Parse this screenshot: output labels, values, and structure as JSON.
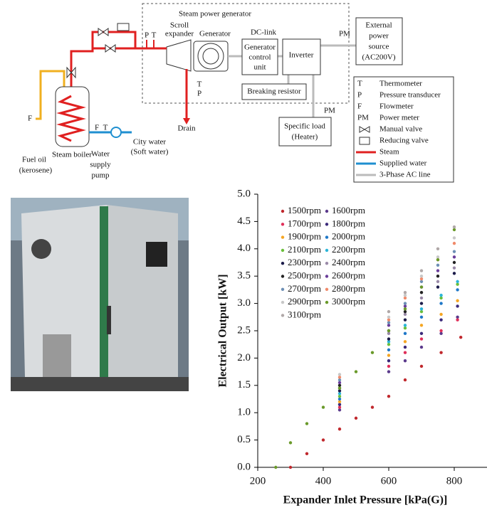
{
  "diagram": {
    "title": "Steam power generator",
    "expander": [
      "Scroll",
      "expander"
    ],
    "generator": "Generator",
    "dc_link": "DC-link",
    "gcu": [
      "Generator",
      "control",
      "unit"
    ],
    "inverter": "Inverter",
    "pm_top": "PM",
    "external": [
      "External",
      "power",
      "source",
      "(AC200V)"
    ],
    "resistor": "Breaking resistor",
    "sensors_top": [
      "P",
      "T"
    ],
    "sensors_bottom": [
      "T",
      "P"
    ],
    "drain": "Drain",
    "pm_bottom": "PM",
    "load": [
      "Specific load",
      "(Heater)"
    ],
    "fuel_f": "F",
    "fuel": [
      "Fuel oil",
      "(kerosene)"
    ],
    "boiler": "Steam boiler",
    "water_sensors": [
      "F",
      "T"
    ],
    "pump": [
      "Water",
      "supply",
      "pump"
    ],
    "city": [
      "City water",
      "(Soft water)"
    ],
    "legend": [
      {
        "symbol": "T",
        "label": "Thermometer"
      },
      {
        "symbol": "P",
        "label": "Pressure transducer"
      },
      {
        "symbol": "F",
        "label": "Flowmeter"
      },
      {
        "symbol": "PM",
        "label": "Power meter"
      },
      {
        "label": "Manual valve"
      },
      {
        "label": "Reducing valve"
      },
      {
        "label": "Steam"
      },
      {
        "label": "Supplied water"
      },
      {
        "label": "3-Phase AC line"
      }
    ]
  },
  "chart_data": {
    "type": "scatter",
    "xlabel": "Expander Inlet Pressure [kPa(G)]",
    "ylabel": "Electrical Output [kW]",
    "xlim": [
      200,
      900
    ],
    "ylim": [
      0,
      5
    ],
    "xticks": [
      200,
      400,
      600,
      800
    ],
    "yticks": [
      {
        "value": 0,
        "label": "0.0"
      },
      0.5,
      {
        "value": 1,
        "label": "1.0"
      },
      1.5,
      {
        "value": 2,
        "label": "2.0"
      },
      2.5,
      {
        "value": 3,
        "label": "3.0"
      },
      3.5,
      {
        "value": 4,
        "label": "4.0"
      },
      4.5,
      {
        "value": 5,
        "label": "5.0"
      }
    ],
    "series": [
      {
        "name": "1500rpm",
        "color": "#c0282d",
        "x": [
          300,
          350,
          400,
          450,
          500,
          550,
          600,
          650,
          700,
          760,
          820
        ],
        "values": [
          0,
          0.25,
          0.5,
          0.7,
          0.9,
          1.1,
          1.3,
          1.6,
          1.85,
          2.1,
          2.38
        ]
      },
      {
        "name": "1600rpm",
        "color": "#5b3a8c",
        "x": [
          450,
          600,
          650,
          700,
          760,
          810
        ],
        "values": [
          1.05,
          1.75,
          1.95,
          2.2,
          2.45,
          2.75
        ]
      },
      {
        "name": "1700rpm",
        "color": "#e0305a",
        "x": [
          450,
          600,
          650,
          700,
          760,
          810
        ],
        "values": [
          1.1,
          1.85,
          2.1,
          2.35,
          2.5,
          2.7
        ]
      },
      {
        "name": "1800rpm",
        "color": "#3b2a7a",
        "x": [
          450,
          600,
          650,
          700,
          760,
          810
        ],
        "values": [
          1.15,
          1.95,
          2.2,
          2.45,
          2.7,
          2.95
        ]
      },
      {
        "name": "1900rpm",
        "color": "#f5a623",
        "x": [
          450,
          600,
          650,
          700,
          760,
          810
        ],
        "values": [
          1.2,
          2.05,
          2.3,
          2.6,
          2.8,
          3.05
        ]
      },
      {
        "name": "2000rpm",
        "color": "#1f78c8",
        "x": [
          450,
          600,
          650,
          700,
          760,
          810
        ],
        "values": [
          1.25,
          2.15,
          2.45,
          2.75,
          3.0,
          3.25
        ]
      },
      {
        "name": "2100rpm",
        "color": "#6abf3b",
        "x": [
          450,
          600,
          650,
          700,
          760,
          810
        ],
        "values": [
          1.3,
          2.25,
          2.55,
          2.85,
          3.1,
          3.35
        ]
      },
      {
        "name": "2200rpm",
        "color": "#2bb5d8",
        "x": [
          450,
          600,
          650,
          700,
          760,
          810
        ],
        "values": [
          1.35,
          2.3,
          2.6,
          2.9,
          3.15,
          3.4
        ]
      },
      {
        "name": "2300rpm",
        "color": "#1c1c4a",
        "x": [
          450,
          600,
          650,
          700,
          750,
          800
        ],
        "values": [
          1.4,
          2.35,
          2.7,
          3.0,
          3.3,
          3.55
        ]
      },
      {
        "name": "2400rpm",
        "color": "#9a8aa8",
        "x": [
          450,
          600,
          650,
          700,
          750,
          800
        ],
        "values": [
          1.45,
          2.45,
          2.8,
          3.1,
          3.4,
          3.65
        ]
      },
      {
        "name": "2500rpm",
        "color": "#222222",
        "x": [
          450,
          600,
          650,
          700,
          750,
          800
        ],
        "values": [
          1.5,
          2.5,
          2.85,
          3.2,
          3.5,
          3.75
        ]
      },
      {
        "name": "2600rpm",
        "color": "#6a3d9a",
        "x": [
          450,
          600,
          650,
          700,
          750,
          800
        ],
        "values": [
          1.55,
          2.6,
          2.95,
          3.3,
          3.6,
          3.85
        ]
      },
      {
        "name": "2700rpm",
        "color": "#6d8fb5",
        "x": [
          450,
          600,
          650,
          700,
          750,
          800
        ],
        "values": [
          1.6,
          2.65,
          3.0,
          3.4,
          3.7,
          3.95
        ]
      },
      {
        "name": "2800rpm",
        "color": "#f08a6a",
        "x": [
          450,
          600,
          650,
          700,
          750,
          800
        ],
        "values": [
          1.65,
          2.7,
          3.1,
          3.45,
          3.8,
          4.1
        ]
      },
      {
        "name": "2900rpm",
        "color": "#c8c8c8",
        "x": [
          450,
          600,
          650,
          700,
          750,
          800
        ],
        "values": [
          1.7,
          2.75,
          3.15,
          3.5,
          3.85,
          4.2
        ]
      },
      {
        "name": "3000rpm",
        "color": "#6a9a2a",
        "x": [
          255,
          300,
          350,
          400,
          450,
          500,
          550,
          600,
          650,
          700,
          750,
          800
        ],
        "values": [
          0,
          0.45,
          0.8,
          1.1,
          1.45,
          1.75,
          2.1,
          2.5,
          2.9,
          3.3,
          3.8,
          4.35
        ]
      },
      {
        "name": "3100rpm",
        "color": "#b0a8a8",
        "x": [
          600,
          650,
          700,
          750,
          800
        ],
        "values": [
          2.85,
          3.2,
          3.6,
          4.0,
          4.4
        ]
      }
    ]
  }
}
